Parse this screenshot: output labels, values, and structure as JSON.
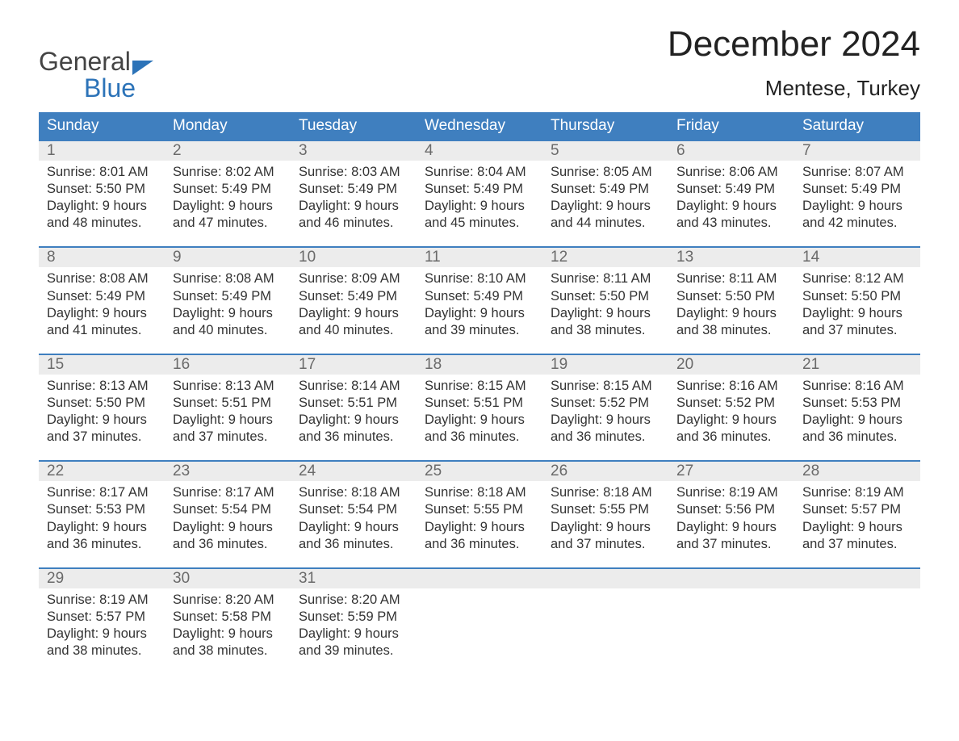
{
  "brand": {
    "word1": "General",
    "word2": "Blue"
  },
  "title": "December 2024",
  "location": "Mentese, Turkey",
  "colors": {
    "header_bg": "#3f7fbf",
    "header_text": "#ffffff",
    "week_border": "#3f7fbf",
    "daynum_bg": "#ececec",
    "daynum_text": "#6a6a6a",
    "body_text": "#333333",
    "brand_blue": "#2c73b8",
    "brand_gray": "#444444",
    "page_bg": "#ffffff"
  },
  "dow": [
    "Sunday",
    "Monday",
    "Tuesday",
    "Wednesday",
    "Thursday",
    "Friday",
    "Saturday"
  ],
  "labels": {
    "sunrise": "Sunrise:",
    "sunset": "Sunset:",
    "daylight": "Daylight:"
  },
  "weeks": [
    [
      {
        "n": "1",
        "sunrise": "8:01 AM",
        "sunset": "5:50 PM",
        "dl1": "9 hours",
        "dl2": "and 48 minutes."
      },
      {
        "n": "2",
        "sunrise": "8:02 AM",
        "sunset": "5:49 PM",
        "dl1": "9 hours",
        "dl2": "and 47 minutes."
      },
      {
        "n": "3",
        "sunrise": "8:03 AM",
        "sunset": "5:49 PM",
        "dl1": "9 hours",
        "dl2": "and 46 minutes."
      },
      {
        "n": "4",
        "sunrise": "8:04 AM",
        "sunset": "5:49 PM",
        "dl1": "9 hours",
        "dl2": "and 45 minutes."
      },
      {
        "n": "5",
        "sunrise": "8:05 AM",
        "sunset": "5:49 PM",
        "dl1": "9 hours",
        "dl2": "and 44 minutes."
      },
      {
        "n": "6",
        "sunrise": "8:06 AM",
        "sunset": "5:49 PM",
        "dl1": "9 hours",
        "dl2": "and 43 minutes."
      },
      {
        "n": "7",
        "sunrise": "8:07 AM",
        "sunset": "5:49 PM",
        "dl1": "9 hours",
        "dl2": "and 42 minutes."
      }
    ],
    [
      {
        "n": "8",
        "sunrise": "8:08 AM",
        "sunset": "5:49 PM",
        "dl1": "9 hours",
        "dl2": "and 41 minutes."
      },
      {
        "n": "9",
        "sunrise": "8:08 AM",
        "sunset": "5:49 PM",
        "dl1": "9 hours",
        "dl2": "and 40 minutes."
      },
      {
        "n": "10",
        "sunrise": "8:09 AM",
        "sunset": "5:49 PM",
        "dl1": "9 hours",
        "dl2": "and 40 minutes."
      },
      {
        "n": "11",
        "sunrise": "8:10 AM",
        "sunset": "5:49 PM",
        "dl1": "9 hours",
        "dl2": "and 39 minutes."
      },
      {
        "n": "12",
        "sunrise": "8:11 AM",
        "sunset": "5:50 PM",
        "dl1": "9 hours",
        "dl2": "and 38 minutes."
      },
      {
        "n": "13",
        "sunrise": "8:11 AM",
        "sunset": "5:50 PM",
        "dl1": "9 hours",
        "dl2": "and 38 minutes."
      },
      {
        "n": "14",
        "sunrise": "8:12 AM",
        "sunset": "5:50 PM",
        "dl1": "9 hours",
        "dl2": "and 37 minutes."
      }
    ],
    [
      {
        "n": "15",
        "sunrise": "8:13 AM",
        "sunset": "5:50 PM",
        "dl1": "9 hours",
        "dl2": "and 37 minutes."
      },
      {
        "n": "16",
        "sunrise": "8:13 AM",
        "sunset": "5:51 PM",
        "dl1": "9 hours",
        "dl2": "and 37 minutes."
      },
      {
        "n": "17",
        "sunrise": "8:14 AM",
        "sunset": "5:51 PM",
        "dl1": "9 hours",
        "dl2": "and 36 minutes."
      },
      {
        "n": "18",
        "sunrise": "8:15 AM",
        "sunset": "5:51 PM",
        "dl1": "9 hours",
        "dl2": "and 36 minutes."
      },
      {
        "n": "19",
        "sunrise": "8:15 AM",
        "sunset": "5:52 PM",
        "dl1": "9 hours",
        "dl2": "and 36 minutes."
      },
      {
        "n": "20",
        "sunrise": "8:16 AM",
        "sunset": "5:52 PM",
        "dl1": "9 hours",
        "dl2": "and 36 minutes."
      },
      {
        "n": "21",
        "sunrise": "8:16 AM",
        "sunset": "5:53 PM",
        "dl1": "9 hours",
        "dl2": "and 36 minutes."
      }
    ],
    [
      {
        "n": "22",
        "sunrise": "8:17 AM",
        "sunset": "5:53 PM",
        "dl1": "9 hours",
        "dl2": "and 36 minutes."
      },
      {
        "n": "23",
        "sunrise": "8:17 AM",
        "sunset": "5:54 PM",
        "dl1": "9 hours",
        "dl2": "and 36 minutes."
      },
      {
        "n": "24",
        "sunrise": "8:18 AM",
        "sunset": "5:54 PM",
        "dl1": "9 hours",
        "dl2": "and 36 minutes."
      },
      {
        "n": "25",
        "sunrise": "8:18 AM",
        "sunset": "5:55 PM",
        "dl1": "9 hours",
        "dl2": "and 36 minutes."
      },
      {
        "n": "26",
        "sunrise": "8:18 AM",
        "sunset": "5:55 PM",
        "dl1": "9 hours",
        "dl2": "and 37 minutes."
      },
      {
        "n": "27",
        "sunrise": "8:19 AM",
        "sunset": "5:56 PM",
        "dl1": "9 hours",
        "dl2": "and 37 minutes."
      },
      {
        "n": "28",
        "sunrise": "8:19 AM",
        "sunset": "5:57 PM",
        "dl1": "9 hours",
        "dl2": "and 37 minutes."
      }
    ],
    [
      {
        "n": "29",
        "sunrise": "8:19 AM",
        "sunset": "5:57 PM",
        "dl1": "9 hours",
        "dl2": "and 38 minutes."
      },
      {
        "n": "30",
        "sunrise": "8:20 AM",
        "sunset": "5:58 PM",
        "dl1": "9 hours",
        "dl2": "and 38 minutes."
      },
      {
        "n": "31",
        "sunrise": "8:20 AM",
        "sunset": "5:59 PM",
        "dl1": "9 hours",
        "dl2": "and 39 minutes."
      },
      {
        "empty": true
      },
      {
        "empty": true
      },
      {
        "empty": true
      },
      {
        "empty": true
      }
    ]
  ]
}
